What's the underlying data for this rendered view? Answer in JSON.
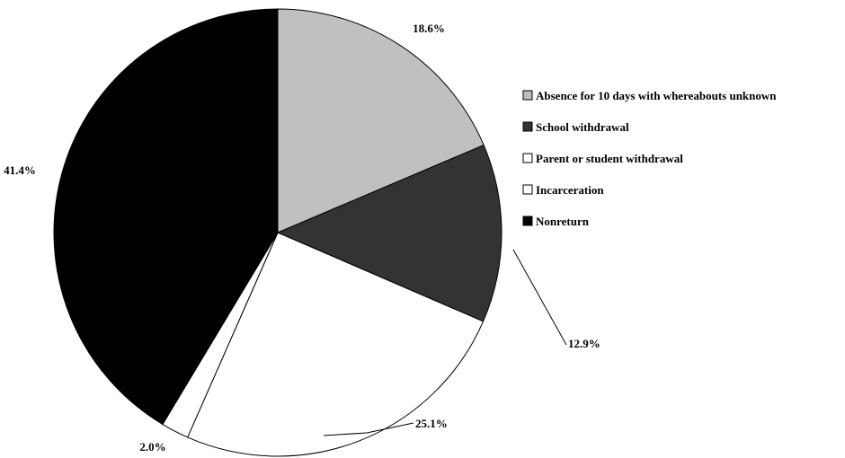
{
  "chart_data": {
    "type": "pie",
    "title": "",
    "slices": [
      {
        "label": "Absence for 10 days with whereabouts unknown",
        "value": 18.6,
        "display": "18.6%",
        "color": "#c0c0c0"
      },
      {
        "label": "School withdrawal",
        "value": 12.9,
        "display": "12.9%",
        "color": "#333333"
      },
      {
        "label": "Parent or student withdrawal",
        "value": 25.1,
        "display": "25.1%",
        "color": "#ffffff"
      },
      {
        "label": "Incarceration",
        "value": 2.0,
        "display": "2.0%",
        "color": "#ffffff"
      },
      {
        "label": "Nonreturn",
        "value": 41.4,
        "display": "41.4%",
        "color": "#000000"
      }
    ],
    "start_angle": "12 o'clock",
    "direction": "clockwise",
    "legend_position": "right"
  }
}
